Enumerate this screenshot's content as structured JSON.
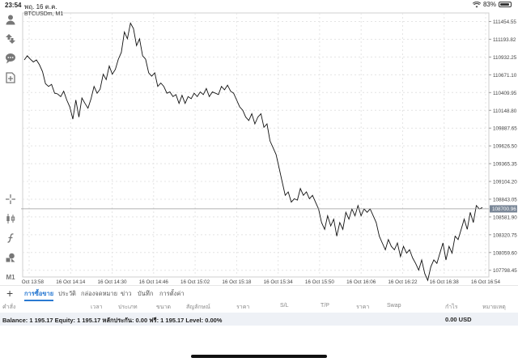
{
  "status_bar": {
    "time": "23:54",
    "date": "พฤ. 16 ต.ค.",
    "battery": "83%"
  },
  "chart": {
    "symbol": "BTCUSDm, M1",
    "current_price": "108700.96"
  },
  "chart_data": {
    "type": "line",
    "y_ticks": [
      "111454.55",
      "111193.82",
      "110932.25",
      "110671.10",
      "110409.95",
      "110148.80",
      "109887.65",
      "109626.50",
      "109365.35",
      "109104.20",
      "108843.05",
      "108581.90",
      "108320.75",
      "108059.60",
      "107798.45"
    ],
    "x_ticks": [
      "16 Oct 13:58",
      "16 Oct 14:14",
      "16 Oct 14:30",
      "16 Oct 14:46",
      "16 Oct 15:02",
      "16 Oct 15:18",
      "16 Oct 15:34",
      "16 Oct 15:50",
      "16 Oct 16:06",
      "16 Oct 16:22",
      "16 Oct 16:38",
      "16 Oct 16:54"
    ],
    "ylim": [
      107700,
      111580
    ],
    "grid": true,
    "values": [
      110890,
      110950,
      110900,
      110860,
      110890,
      110820,
      110720,
      110540,
      110500,
      110530,
      110400,
      110390,
      110350,
      110430,
      110300,
      110200,
      110020,
      110300,
      110050,
      110330,
      110250,
      110180,
      110320,
      110500,
      110400,
      110460,
      110680,
      110600,
      110800,
      110680,
      110750,
      110900,
      111000,
      111300,
      111200,
      111430,
      111350,
      111100,
      111200,
      110950,
      110900,
      110700,
      110650,
      110700,
      110500,
      110550,
      110500,
      110400,
      110420,
      110350,
      110380,
      110250,
      110370,
      110250,
      110350,
      110320,
      110400,
      110350,
      110420,
      110380,
      110470,
      110350,
      110420,
      110400,
      110380,
      110500,
      110450,
      110520,
      110430,
      110400,
      110300,
      110200,
      110150,
      110050,
      110000,
      110100,
      109950,
      110050,
      110100,
      109900,
      109950,
      109700,
      109600,
      109500,
      109300,
      109100,
      108900,
      108950,
      108800,
      108850,
      108830,
      109000,
      108900,
      108950,
      108850,
      108900,
      108800,
      108700,
      108500,
      108400,
      108600,
      108450,
      108550,
      108300,
      108500,
      108400,
      108650,
      108550,
      108700,
      108600,
      108750,
      108600,
      108700,
      108650,
      108700,
      108600,
      108500,
      108300,
      108200,
      108100,
      108250,
      108150,
      108100,
      108200,
      108000,
      108150,
      108050,
      108100,
      107980,
      107900,
      107800,
      107950,
      107750,
      107650,
      107850,
      107950,
      107900,
      108050,
      108200,
      107950,
      108150,
      108050,
      108300,
      108250,
      108400,
      108550,
      108400,
      108650,
      108500,
      108750,
      108700,
      108720
    ]
  },
  "toolbar_icons": [
    "profile-icon",
    "trade-icon",
    "chat-icon",
    "add-chart-icon",
    "crosshair-icon",
    "candles-icon",
    "indicator-icon",
    "objects-icon",
    "timeframe-label"
  ],
  "timeframe": "M1",
  "tabs": [
    "การซื้อขาย",
    "ประวัติ",
    "กล่องจดหมาย",
    "ข่าว",
    "บันทึก",
    "การตั้งค่า"
  ],
  "active_tab": 0,
  "columns": [
    "คำสั่ง",
    "เวลา",
    "ประเภท",
    "ขนาด",
    "สัญลักษณ์",
    "ราคา",
    "S/L",
    "T/P",
    "ราคา",
    "Swap",
    "กำไร",
    "หมายเหตุ"
  ],
  "balance": {
    "text": "Balance: 1 195.17 Equity: 1 195.17 หลักประกัน: 0.00 ฟรี: 1 195.17 Level: 0.00%",
    "amount": "0.00  USD"
  }
}
